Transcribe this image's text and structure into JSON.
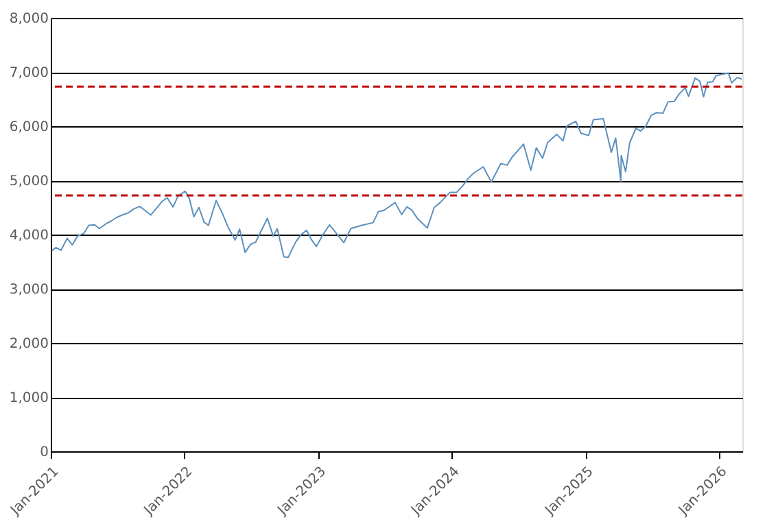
{
  "chart_data": {
    "type": "line",
    "x": [
      "2021-01-04",
      "2021-01-15",
      "2021-01-29",
      "2021-02-15",
      "2021-03-01",
      "2021-03-15",
      "2021-04-01",
      "2021-04-15",
      "2021-05-01",
      "2021-05-14",
      "2021-06-01",
      "2021-06-15",
      "2021-07-01",
      "2021-07-15",
      "2021-08-01",
      "2021-08-15",
      "2021-09-01",
      "2021-09-15",
      "2021-10-01",
      "2021-10-15",
      "2021-11-01",
      "2021-11-15",
      "2021-12-01",
      "2021-12-15",
      "2022-01-03",
      "2022-01-15",
      "2022-01-27",
      "2022-02-10",
      "2022-02-24",
      "2022-03-08",
      "2022-03-29",
      "2022-04-15",
      "2022-05-01",
      "2022-05-20",
      "2022-06-01",
      "2022-06-16",
      "2022-07-01",
      "2022-07-15",
      "2022-08-16",
      "2022-09-01",
      "2022-09-12",
      "2022-09-30",
      "2022-10-12",
      "2022-11-01",
      "2022-11-15",
      "2022-12-01",
      "2022-12-15",
      "2022-12-28",
      "2023-01-15",
      "2023-02-02",
      "2023-03-01",
      "2023-03-13",
      "2023-04-01",
      "2023-05-01",
      "2023-06-01",
      "2023-06-15",
      "2023-07-01",
      "2023-07-31",
      "2023-08-18",
      "2023-09-01",
      "2023-09-15",
      "2023-10-01",
      "2023-10-27",
      "2023-11-15",
      "2023-12-01",
      "2023-12-28",
      "2024-01-15",
      "2024-02-01",
      "2024-02-15",
      "2024-03-01",
      "2024-03-28",
      "2024-04-19",
      "2024-05-15",
      "2024-06-01",
      "2024-06-15",
      "2024-07-16",
      "2024-08-05",
      "2024-08-20",
      "2024-09-06",
      "2024-09-20",
      "2024-10-15",
      "2024-11-01",
      "2024-11-11",
      "2024-12-06",
      "2024-12-20",
      "2025-01-10",
      "2025-01-23",
      "2025-02-19",
      "2025-03-13",
      "2025-03-25",
      "2025-04-08",
      "2025-04-09",
      "2025-04-21",
      "2025-05-02",
      "2025-05-19",
      "2025-06-01",
      "2025-06-15",
      "2025-06-30",
      "2025-07-15",
      "2025-08-01",
      "2025-08-15",
      "2025-09-01",
      "2025-09-15",
      "2025-10-01",
      "2025-10-10",
      "2025-10-28",
      "2025-11-10",
      "2025-11-20",
      "2025-12-01",
      "2025-12-15",
      "2025-12-24",
      "2026-01-10",
      "2026-01-27",
      "2026-02-05",
      "2026-02-20",
      "2026-03-04"
    ],
    "series": [
      {
        "color": "#5b8fbf",
        "values": [
          3700,
          3760,
          3710,
          3930,
          3810,
          3970,
          4020,
          4170,
          4180,
          4110,
          4200,
          4250,
          4320,
          4360,
          4400,
          4470,
          4520,
          4450,
          4360,
          4470,
          4610,
          4680,
          4510,
          4710,
          4800,
          4660,
          4330,
          4500,
          4230,
          4170,
          4630,
          4390,
          4130,
          3900,
          4100,
          3670,
          3820,
          3860,
          4300,
          3970,
          4110,
          3590,
          3580,
          3860,
          3990,
          4080,
          3900,
          3780,
          4000,
          4180,
          3950,
          3850,
          4110,
          4170,
          4220,
          4420,
          4450,
          4590,
          4370,
          4510,
          4450,
          4290,
          4120,
          4500,
          4590,
          4780,
          4780,
          4900,
          5030,
          5130,
          5250,
          4970,
          5310,
          5280,
          5430,
          5670,
          5190,
          5600,
          5410,
          5700,
          5850,
          5730,
          6000,
          6090,
          5870,
          5830,
          6120,
          6140,
          5520,
          5780,
          4980,
          5460,
          5160,
          5690,
          5960,
          5910,
          6000,
          6200,
          6250,
          6240,
          6450,
          6460,
          6600,
          6710,
          6550,
          6890,
          6830,
          6540,
          6810,
          6820,
          6930,
          6960,
          6980,
          6800,
          6900,
          6870
        ]
      }
    ],
    "xlim": [
      "2021-01-01",
      "2026-03-06"
    ],
    "xticks": [
      {
        "value": "2021-01-01",
        "label": "Jan-2021"
      },
      {
        "value": "2022-01-01",
        "label": "Jan-2022"
      },
      {
        "value": "2023-01-01",
        "label": "Jan-2023"
      },
      {
        "value": "2024-01-01",
        "label": "Jan-2024"
      },
      {
        "value": "2025-01-01",
        "label": "Jan-2025"
      },
      {
        "value": "2026-01-01",
        "label": "Jan-2026"
      }
    ],
    "ylim": [
      0,
      8000
    ],
    "yticks": [
      {
        "value": 0,
        "label": "0"
      },
      {
        "value": 1000,
        "label": "1,000"
      },
      {
        "value": 2000,
        "label": "2,000"
      },
      {
        "value": 3000,
        "label": "3,000"
      },
      {
        "value": 4000,
        "label": "4,000"
      },
      {
        "value": 5000,
        "label": "5,000"
      },
      {
        "value": 6000,
        "label": "6,000"
      },
      {
        "value": 7000,
        "label": "7,000"
      },
      {
        "value": 8000,
        "label": "8,000"
      }
    ],
    "ref_lines": [
      {
        "axis": "y",
        "value": 6730,
        "color": "#c00000",
        "line_style": "dashed"
      },
      {
        "axis": "y",
        "value": 4720,
        "color": "#c00000",
        "line_style": "dashed"
      }
    ],
    "grid": "y",
    "line_style": "solid",
    "marker": "none"
  }
}
